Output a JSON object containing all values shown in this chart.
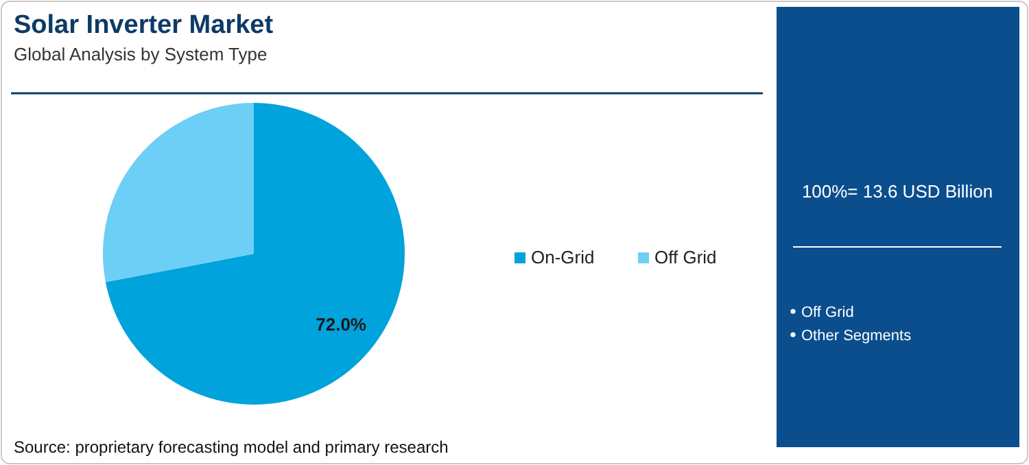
{
  "chart_data": {
    "type": "pie",
    "title": "Solar Inverter Market",
    "subtitle": "Global Analysis by System Type",
    "categories": [
      "On-Grid",
      "Off Grid"
    ],
    "values": [
      72.0,
      28.0
    ],
    "colors": [
      "#00a3dc",
      "#6dcff6"
    ],
    "value_labels": [
      "72.0%",
      null
    ],
    "legend": "right",
    "annotations": [
      "Source: proprietary forecasting model and primary research",
      "100%= 13.6 USD Billion",
      "Off Grid",
      "Other Segments"
    ]
  }
}
